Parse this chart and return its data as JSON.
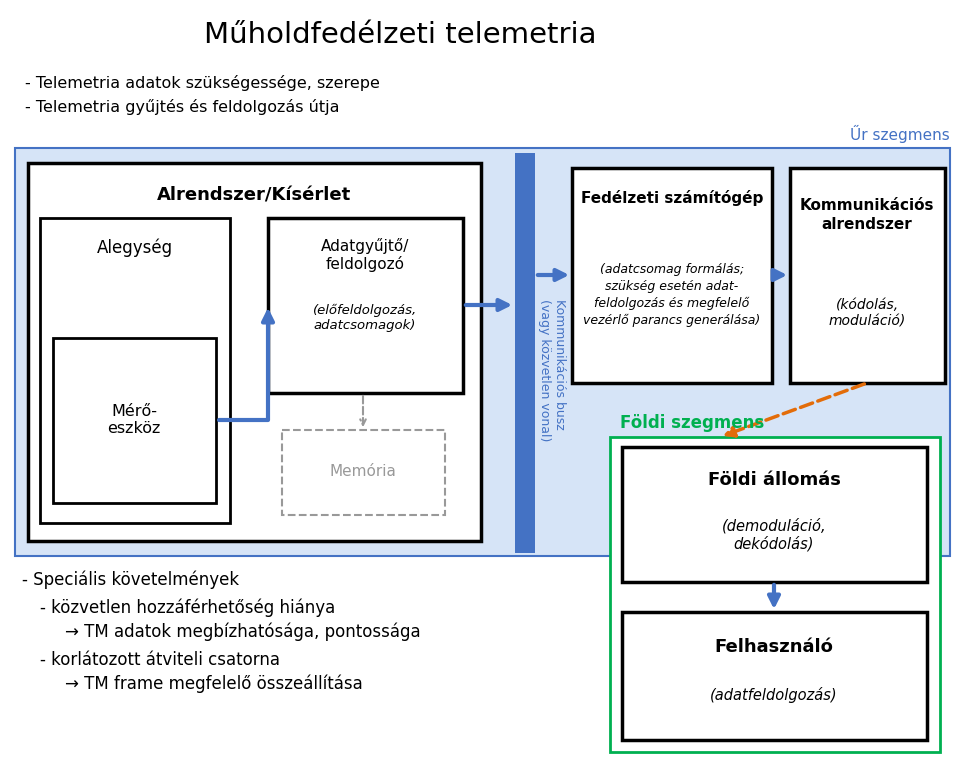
{
  "title": "Műholdfedélzeti telemetria",
  "bullet1": "Telemetria adatok szükségessége, szerepe",
  "bullet2": "Telemetria gyűjtés és feldolgozás útja",
  "ur_szegmens_label": "Űr szegmens",
  "foldi_szegmens_label": "Földi szegmens",
  "box_alrendszer_title": "Alrendszer/Kísérlet",
  "box_alegseg": "Alegység",
  "box_mero": "Mérő-\neszköz",
  "box_adatgyujto_title": "Adatgyűjtő/\nfeldolgozó",
  "box_adatgyujto_sub": "(előfeldolgozás,\nadatcsomagok)",
  "box_memoria": "Memória",
  "box_fedelzeti_title": "Fedélzeti számítógép",
  "box_fedelzeti_sub": "(adatcsomag formálás;\nszükség esetén adat-\nfeldolgozás és megfelelő\nvezérlő parancs generálása)",
  "box_kommunikacios_title": "Kommunikációs\nalrendszer",
  "box_kommunikacios_sub": "(kódolás,\nmoduláció)",
  "box_foldi_allomas_title": "Földi állomás",
  "box_foldi_allomas_sub": "(demoduláció,\ndekódolás)",
  "box_felhasznalo_title": "Felhasználó",
  "box_felhasznalo_sub": "(adatfeldolgozás)",
  "bus_label": "Kommunikációs busz\n(vagy közvetlen vonal)",
  "spec_title": "Speciális követelmények",
  "spec_bullet1": "közvetlen hozzáférhetőség hiánya",
  "spec_arrow1": "→ TM adatok megbízhatósága, pontossága",
  "spec_bullet2": "korlátozott átviteli csatorna",
  "spec_arrow2": "→ TM frame megfelelő összeállítása",
  "color_blue_border": "#4472C4",
  "color_green_border": "#00B050",
  "color_orange_dashed": "#E36C09",
  "color_light_blue_bg": "#D6E4F7",
  "color_gray": "#999999",
  "color_green_text": "#00B050"
}
